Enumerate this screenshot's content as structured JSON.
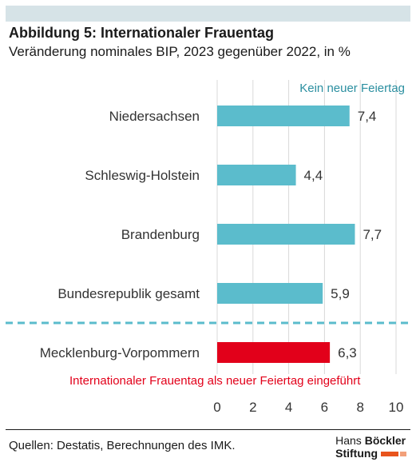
{
  "header": {
    "title": "Abbildung 5: Internationaler Frauentag",
    "subtitle": "Veränderung nominales BIP, 2023 gegenüber 2022, in %"
  },
  "chart_data": {
    "type": "bar",
    "orientation": "horizontal",
    "categories": [
      "Niedersachsen",
      "Schleswig-Holstein",
      "Brandenburg",
      "Bundesrepublik gesamt",
      "Mecklenburg-Vorpommern"
    ],
    "values": [
      7.4,
      4.4,
      7.7,
      5.9,
      6.3
    ],
    "value_labels": [
      "7,4",
      "4,4",
      "7,7",
      "5,9",
      "6,3"
    ],
    "groups": [
      {
        "label": "Kein neuer Feiertag",
        "color": "#5bbccc",
        "members": [
          0,
          1,
          2,
          3
        ]
      },
      {
        "label": "Internationaler Frauentag als neuer Feiertag eingeführt",
        "color": "#e2001a",
        "members": [
          4
        ]
      }
    ],
    "xlim": [
      0,
      10
    ],
    "xticks": [
      "0",
      "2",
      "4",
      "6",
      "8",
      "10"
    ],
    "grid": "vertical"
  },
  "footer": {
    "source": "Quellen: Destatis, Berechnungen des IMK.",
    "logo_line1_a": "Hans",
    "logo_line1_b": "Böckler",
    "logo_line2": "Stiftung",
    "logo_colors": [
      "#e8541c",
      "#f2a07a"
    ]
  }
}
